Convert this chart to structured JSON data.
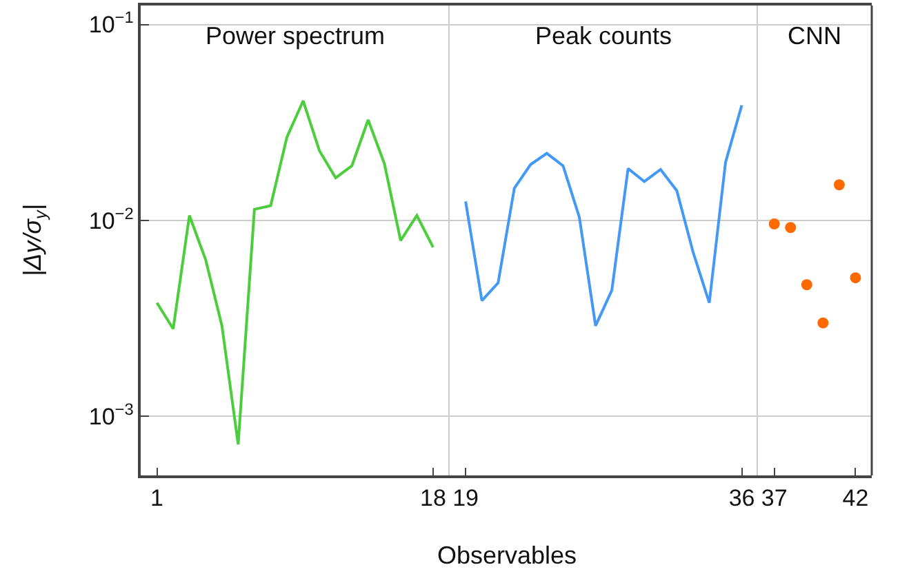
{
  "chart_data": [
    {
      "type": "line",
      "title": "Power spectrum",
      "xlabel": "Observables",
      "ylabel": "|Δy/σ$_{y}$|",
      "log": "y",
      "grid": "y",
      "marker": "none",
      "line_style": "solid",
      "x": [
        1,
        2,
        3,
        4,
        5,
        6,
        7,
        8,
        9,
        10,
        11,
        12,
        13,
        14,
        15,
        16,
        17,
        18
      ],
      "series": [
        {
          "color": "#4ccd3c",
          "values": [
            0.0038,
            0.0028,
            0.0106,
            0.0063,
            0.0029,
            0.00072,
            0.0114,
            0.0119,
            0.0266,
            0.0408,
            0.0227,
            0.0165,
            0.019,
            0.0326,
            0.0195,
            0.0079,
            0.0106,
            0.0073
          ]
        }
      ],
      "xlim": [
        0,
        19
      ],
      "xticks": [
        1,
        18
      ],
      "ylim": [
        0.0005,
        0.125
      ],
      "yticks": [
        {
          "value": 0.001,
          "label": "10$^{−3}$"
        },
        {
          "value": 0.01,
          "label": "10$^{−2}$"
        },
        {
          "value": 0.1,
          "label": "10$^{−1}$"
        }
      ]
    },
    {
      "type": "line",
      "title": "Peak counts",
      "log": "y",
      "grid": "y",
      "marker": "none",
      "line_style": "solid",
      "tick_labels": "x",
      "x": [
        19,
        20,
        21,
        22,
        23,
        24,
        25,
        26,
        27,
        28,
        29,
        30,
        31,
        32,
        33,
        34,
        35,
        36
      ],
      "series": [
        {
          "color": "#4499f5",
          "values": [
            0.0125,
            0.0039,
            0.0048,
            0.0146,
            0.0193,
            0.022,
            0.019,
            0.0104,
            0.0029,
            0.0044,
            0.0184,
            0.0158,
            0.0182,
            0.0142,
            0.0069,
            0.0038,
            0.0198,
            0.0387
          ]
        }
      ],
      "xlim": [
        18,
        37
      ],
      "xticks": [
        19,
        36
      ],
      "ylim": [
        0.0005,
        0.125
      ],
      "yticks": [
        0.001,
        0.01,
        0.1
      ]
    },
    {
      "type": "scatter",
      "title": "CNN",
      "log": "y",
      "grid": "y",
      "marker": "circle",
      "tick_labels": "x",
      "x": [
        37,
        38,
        39,
        40,
        41,
        42
      ],
      "series": [
        {
          "color": "#ff6a00",
          "values": [
            0.0096,
            0.0092,
            0.0047,
            0.003,
            0.0152,
            0.0051
          ]
        }
      ],
      "xlim": [
        36,
        43
      ],
      "xticks": [
        37,
        42
      ],
      "ylim": [
        0.0005,
        0.125
      ],
      "yticks": [
        0.001,
        0.01,
        0.1
      ]
    }
  ]
}
